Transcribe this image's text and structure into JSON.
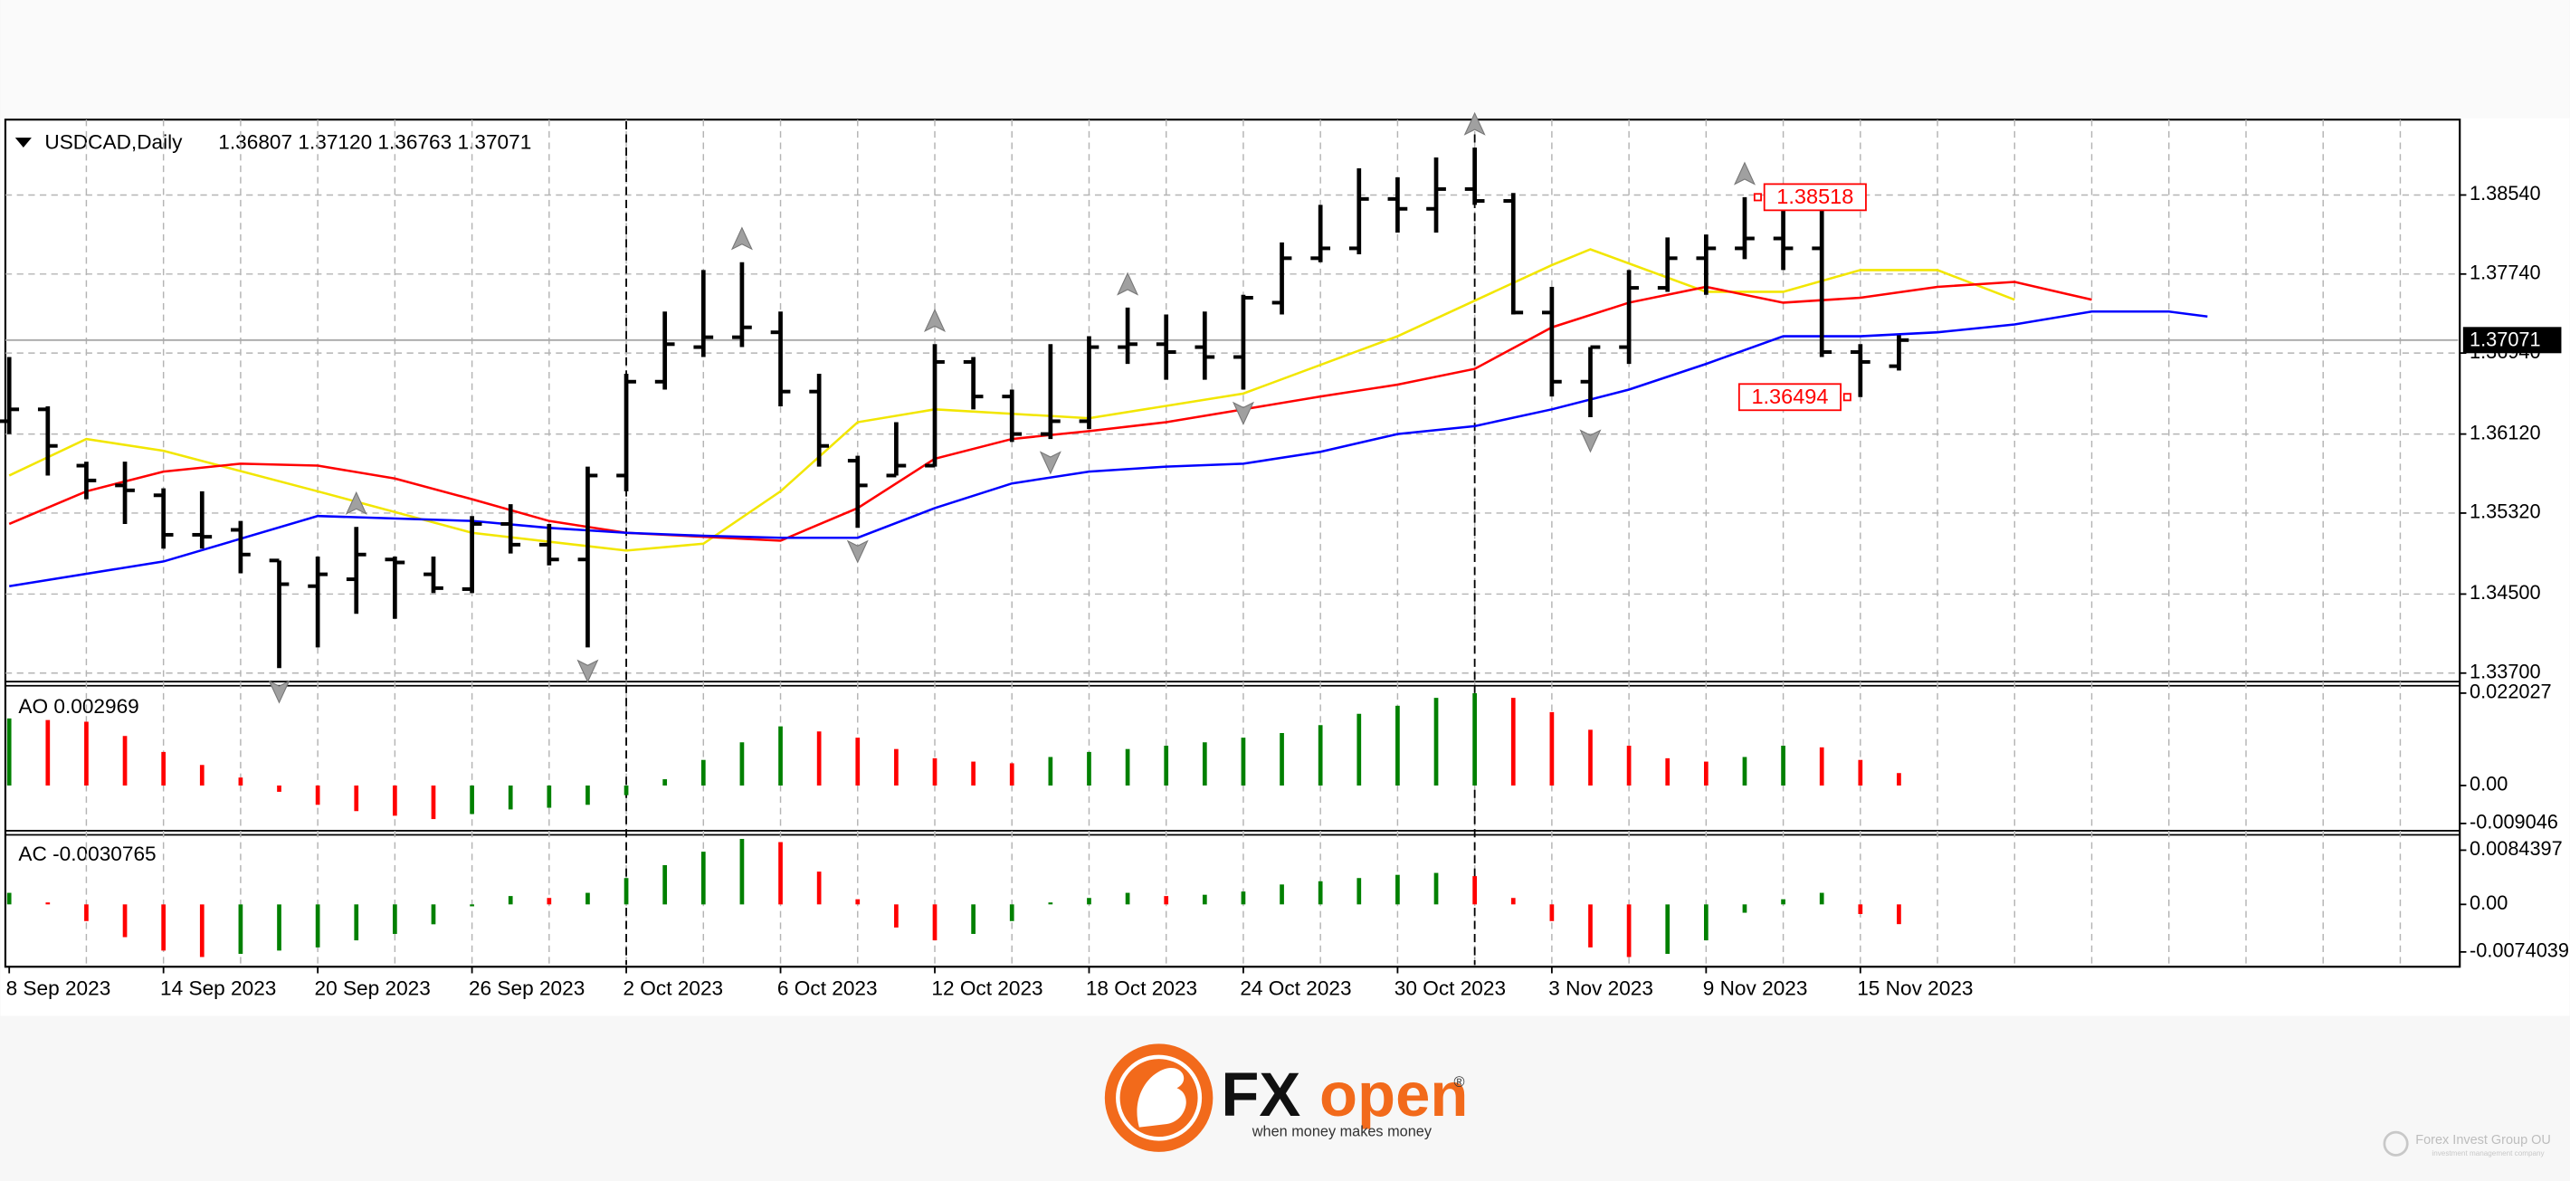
{
  "chart_data": [
    {
      "type": "ohlc",
      "symbol": "USDCAD,Daily",
      "header_values": "1.36807 1.37120 1.36763 1.37071",
      "categories": [
        "8 Sep 2023",
        null,
        null,
        null,
        "14 Sep 2023",
        null,
        null,
        null,
        "20 Sep 2023",
        null,
        null,
        null,
        "26 Sep 2023",
        null,
        null,
        null,
        "2 Oct 2023",
        null,
        null,
        null,
        "6 Oct 2023",
        null,
        null,
        null,
        "12 Oct 2023",
        null,
        null,
        null,
        "18 Oct 2023",
        null,
        null,
        null,
        "24 Oct 2023",
        null,
        null,
        null,
        "30 Oct 2023",
        null,
        null,
        null,
        "3 Nov 2023",
        null,
        null,
        null,
        "9 Nov 2023",
        null,
        null,
        null,
        "15 Nov 2023",
        null
      ],
      "open": [
        1.3625,
        1.3637,
        1.358,
        1.356,
        1.355,
        1.351,
        1.3515,
        1.3484,
        1.3458,
        1.3465,
        1.3485,
        1.347,
        1.3455,
        1.3521,
        1.35,
        1.3485,
        1.357,
        1.3665,
        1.37,
        1.371,
        1.3715,
        1.3655,
        1.3585,
        1.357,
        1.358,
        1.3685,
        1.365,
        1.3612,
        1.3625,
        1.37,
        1.3703,
        1.37,
        1.369,
        1.3745,
        1.379,
        1.38,
        1.385,
        1.384,
        1.386,
        1.3848,
        1.3735,
        1.3665,
        1.37,
        1.376,
        1.379,
        1.38,
        1.381,
        1.38,
        1.3695,
        1.36807
      ],
      "high": [
        1.369,
        1.364,
        1.3584,
        1.3584,
        1.3557,
        1.3554,
        1.3524,
        1.3484,
        1.3488,
        1.3518,
        1.3488,
        1.3488,
        1.3529,
        1.3541,
        1.3521,
        1.3579,
        1.3673,
        1.3736,
        1.3778,
        1.3786,
        1.3736,
        1.3673,
        1.359,
        1.3624,
        1.3703,
        1.369,
        1.3657,
        1.3703,
        1.3711,
        1.374,
        1.3733,
        1.3736,
        1.3753,
        1.3806,
        1.3844,
        1.3881,
        1.3872,
        1.3892,
        1.3902,
        1.3856,
        1.3761,
        1.37,
        1.3778,
        1.3811,
        1.3814,
        1.38518,
        1.3845,
        1.3847,
        1.3703,
        1.3712
      ],
      "low": [
        1.3612,
        1.357,
        1.3546,
        1.3521,
        1.3496,
        1.3496,
        1.3471,
        1.3375,
        1.3396,
        1.343,
        1.3425,
        1.3451,
        1.3451,
        1.3491,
        1.3479,
        1.3396,
        1.3554,
        1.3657,
        1.369,
        1.37,
        1.364,
        1.3579,
        1.3517,
        1.357,
        1.3579,
        1.3637,
        1.3604,
        1.3607,
        1.3617,
        1.3683,
        1.3667,
        1.3667,
        1.3657,
        1.3733,
        1.3786,
        1.3794,
        1.3816,
        1.3816,
        1.3844,
        1.3733,
        1.365,
        1.3629,
        1.3683,
        1.3756,
        1.3753,
        1.3789,
        1.3778,
        1.369,
        1.36494,
        1.36763
      ],
      "close": [
        1.3637,
        1.36,
        1.3565,
        1.3555,
        1.351,
        1.3508,
        1.349,
        1.346,
        1.347,
        1.349,
        1.3482,
        1.3456,
        1.3521,
        1.35,
        1.3485,
        1.357,
        1.3665,
        1.3703,
        1.371,
        1.372,
        1.3655,
        1.36,
        1.356,
        1.358,
        1.3685,
        1.365,
        1.3612,
        1.3625,
        1.37,
        1.3703,
        1.3695,
        1.369,
        1.375,
        1.379,
        1.38,
        1.385,
        1.384,
        1.386,
        1.3848,
        1.3735,
        1.3665,
        1.37,
        1.376,
        1.379,
        1.38,
        1.381,
        1.38,
        1.3695,
        1.3685,
        1.37071
      ],
      "bar_color": "#000000",
      "xlim": [
        -0.1,
        63.5
      ],
      "ylim": [
        1.3363,
        1.3927
      ],
      "yticks": [
        {
          "value": 1.3854,
          "label": "1.38540"
        },
        {
          "value": 1.3774,
          "label": "1.37740"
        },
        {
          "value": 1.3694,
          "label": "1.36940"
        },
        {
          "value": 1.3612,
          "label": "1.36120"
        },
        {
          "value": 1.3532,
          "label": "1.35320"
        },
        {
          "value": 1.345,
          "label": "1.34500"
        },
        {
          "value": 1.337,
          "label": "1.33700"
        }
      ],
      "grid": true,
      "lines": [
        {
          "color": "#f2e600",
          "x": [
            0,
            2,
            4,
            8,
            12,
            16,
            18,
            20,
            22,
            24,
            28,
            32,
            36,
            40,
            41,
            44,
            46,
            48,
            50,
            52
          ],
          "values": [
            1.357,
            1.3607,
            1.3595,
            1.3554,
            1.3512,
            1.3494,
            1.3501,
            1.3554,
            1.3624,
            1.3637,
            1.3628,
            1.3653,
            1.3711,
            1.3783,
            1.3799,
            1.3756,
            1.3756,
            1.3778,
            1.3778,
            1.3748
          ]
        },
        {
          "color": "#ff0000",
          "x": [
            0,
            2,
            4,
            6,
            8,
            10,
            12,
            14,
            16,
            18,
            20,
            22,
            24,
            26,
            28,
            30,
            32,
            34,
            36,
            38,
            40,
            42,
            44,
            46,
            48,
            50,
            52,
            54
          ],
          "values": [
            1.3521,
            1.3554,
            1.3574,
            1.3582,
            1.358,
            1.3567,
            1.3546,
            1.3524,
            1.3512,
            1.3508,
            1.3504,
            1.3537,
            1.3587,
            1.3607,
            1.3615,
            1.3624,
            1.3637,
            1.365,
            1.3662,
            1.3678,
            1.372,
            1.3745,
            1.3761,
            1.3745,
            1.375,
            1.3761,
            1.3766,
            1.3748
          ]
        },
        {
          "color": "#0000ff",
          "x": [
            0,
            4,
            8,
            12,
            14,
            16,
            18,
            20,
            22,
            24,
            26,
            28,
            30,
            32,
            34,
            36,
            38,
            40,
            42,
            44,
            46,
            48,
            50,
            52,
            54,
            56,
            57
          ],
          "values": [
            1.3458,
            1.3483,
            1.3529,
            1.3524,
            1.3517,
            1.3512,
            1.3509,
            1.3507,
            1.3507,
            1.3537,
            1.3562,
            1.3574,
            1.3579,
            1.3582,
            1.3594,
            1.3612,
            1.362,
            1.3637,
            1.3657,
            1.3683,
            1.3711,
            1.3711,
            1.3715,
            1.3723,
            1.3736,
            1.3736,
            1.3731
          ]
        }
      ],
      "fractals_up": [
        9,
        19,
        24,
        29,
        38,
        45
      ],
      "fractals_down": [
        7,
        15,
        22,
        27,
        32,
        41
      ],
      "fractal_color": "#a0a0a0",
      "period_separators": [
        16,
        38
      ],
      "annotations": [
        {
          "index": 45,
          "value": 1.38518,
          "side": "right"
        },
        {
          "index": 48,
          "value": 1.36494,
          "side": "left"
        }
      ],
      "annotation_color": "#ff0000",
      "current_price": 1.37071
    },
    {
      "type": "histogram",
      "title": "AO 0.002969",
      "values": [
        0.016,
        0.0156,
        0.0152,
        0.0118,
        0.008,
        0.0049,
        0.0019,
        -0.0015,
        -0.0046,
        -0.0061,
        -0.0072,
        -0.008,
        -0.0068,
        -0.0057,
        -0.0053,
        -0.0046,
        -0.0023,
        0.0015,
        0.0061,
        0.0103,
        0.0141,
        0.0129,
        0.0114,
        0.0087,
        0.0065,
        0.0057,
        0.0053,
        0.0068,
        0.008,
        0.0087,
        0.0095,
        0.0103,
        0.0114,
        0.0125,
        0.0144,
        0.0171,
        0.019,
        0.0209,
        0.022,
        0.0209,
        0.0175,
        0.0133,
        0.0095,
        0.0065,
        0.0057,
        0.0068,
        0.0095,
        0.0091,
        0.0061,
        0.002969
      ],
      "up_color": "#008000",
      "down_color": "#ff0000",
      "xlim": [
        -0.1,
        63.5
      ],
      "ylim": [
        -0.01,
        0.0232
      ],
      "yticks": [
        0.022027,
        {
          "value": 0,
          "label": "0.00"
        },
        -0.009046
      ]
    },
    {
      "type": "histogram",
      "title": "AC -0.0030765",
      "values": [
        0.0018,
        0.0003,
        -0.0026,
        -0.0051,
        -0.0072,
        -0.0082,
        -0.0077,
        -0.0072,
        -0.0067,
        -0.0056,
        -0.0046,
        -0.0031,
        -0.0003,
        0.0013,
        0.001,
        0.0018,
        0.0041,
        0.0061,
        0.0082,
        0.0102,
        0.0097,
        0.0051,
        0.0008,
        -0.0036,
        -0.0056,
        -0.0046,
        -0.0026,
        0.0003,
        0.001,
        0.0018,
        0.0013,
        0.0015,
        0.002,
        0.0031,
        0.0036,
        0.0041,
        0.0046,
        0.0049,
        0.0044,
        0.001,
        -0.0026,
        -0.0067,
        -0.0082,
        -0.0077,
        -0.0056,
        -0.0013,
        0.0008,
        0.0018,
        -0.0015,
        -0.0030765
      ],
      "up_color": "#008000",
      "down_color": "#ff0000",
      "xlim": [
        -0.1,
        63.5
      ],
      "ylim": [
        -0.0092,
        0.0107
      ],
      "yticks": [
        0.0084397,
        {
          "value": 0,
          "label": "0.00"
        },
        -0.0074039
      ]
    }
  ],
  "branding": {
    "logo_fx": "FX",
    "logo_open": "open",
    "registered": "®",
    "tagline": "when money makes money",
    "watermark": "Forex Invest Group OU",
    "watermark_sub": "investment management company"
  }
}
